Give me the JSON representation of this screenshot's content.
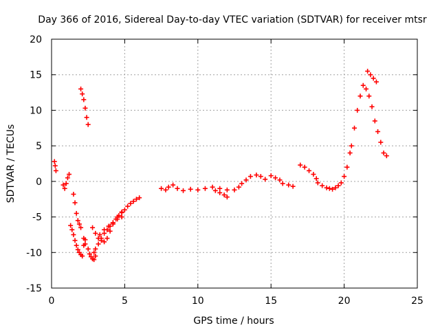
{
  "chart_data": {
    "type": "scatter",
    "title": "Day 366 of 2016, Sidereal Day-to-day VTEC variation (SDTVAR) for receiver mtsr",
    "xlabel": "GPS time / hours",
    "ylabel": "SDTVAR / TECUs",
    "xlim": [
      0,
      25
    ],
    "ylim": [
      -15,
      20
    ],
    "xticks": [
      "0",
      "5",
      "10",
      "15",
      "20",
      "25"
    ],
    "yticks": [
      "-15",
      "-10",
      "-5",
      "0",
      "5",
      "10",
      "15",
      "20"
    ],
    "grid": true,
    "marker": "plus",
    "series": [
      {
        "name": "SDTVAR",
        "color": "#ff0000",
        "x": [
          0.2,
          0.25,
          0.3,
          0.8,
          0.9,
          1.0,
          1.1,
          1.2,
          1.5,
          1.6,
          1.7,
          1.8,
          1.9,
          2.0,
          1.3,
          1.4,
          1.5,
          1.6,
          1.7,
          1.8,
          1.9,
          2.0,
          2.1,
          2.2,
          2.3,
          2.0,
          2.1,
          2.2,
          2.3,
          2.4,
          2.5,
          2.2,
          2.3,
          2.5,
          2.6,
          2.7,
          2.8,
          2.9,
          3.0,
          2.9,
          3.0,
          3.2,
          3.4,
          3.6,
          3.8,
          4.0,
          4.2,
          4.4,
          4.6,
          4.8,
          5.0,
          5.2,
          5.4,
          5.6,
          5.8,
          6.0,
          2.8,
          3.0,
          3.2,
          3.4,
          3.6,
          3.8,
          4.0,
          4.2,
          4.5,
          4.8,
          3.3,
          3.6,
          3.9,
          4.2,
          4.5,
          4.8,
          7.5,
          7.8,
          8.0,
          8.3,
          8.6,
          9.0,
          9.5,
          10.0,
          10.5,
          11.0,
          11.5,
          12.0,
          11.2,
          11.5,
          11.8,
          12.0,
          12.5,
          12.8,
          13.0,
          13.3,
          13.6,
          14.0,
          14.3,
          14.6,
          15.0,
          15.3,
          15.6,
          15.8,
          16.2,
          16.5,
          17.0,
          17.3,
          17.6,
          17.9,
          18.1,
          18.2,
          18.5,
          18.8,
          19.0,
          19.2,
          19.4,
          19.6,
          19.8,
          20.0,
          20.2,
          20.4,
          20.5,
          20.7,
          20.9,
          21.1,
          21.3,
          21.5,
          21.7,
          21.9,
          22.1,
          22.3,
          22.5,
          22.7,
          22.9,
          21.6,
          21.8,
          22.0,
          22.2
        ],
        "y": [
          2.8,
          2.2,
          1.5,
          -0.5,
          -1.0,
          -0.3,
          0.5,
          1.0,
          -1.8,
          -3.0,
          -4.5,
          -5.5,
          -6.0,
          -6.5,
          -6.2,
          -6.8,
          -7.5,
          -8.3,
          -9.0,
          -9.6,
          -10.0,
          -10.3,
          -10.5,
          -9.0,
          -8.2,
          13.0,
          12.3,
          11.5,
          10.3,
          9.0,
          8.0,
          -8.0,
          -8.8,
          -9.5,
          -10.2,
          -10.6,
          -10.9,
          -11.0,
          -10.5,
          -10.0,
          -9.5,
          -8.8,
          -8.0,
          -7.3,
          -6.8,
          -6.3,
          -5.8,
          -5.3,
          -4.8,
          -4.4,
          -4.0,
          -3.5,
          -3.1,
          -2.8,
          -2.5,
          -2.3,
          -6.5,
          -7.3,
          -8.0,
          -8.3,
          -8.5,
          -8.0,
          -7.0,
          -6.0,
          -5.0,
          -4.3,
          -7.5,
          -6.8,
          -6.3,
          -5.8,
          -5.3,
          -5.0,
          -1.0,
          -1.2,
          -0.8,
          -0.5,
          -1.0,
          -1.3,
          -1.1,
          -1.2,
          -1.0,
          -0.8,
          -1.0,
          -1.2,
          -1.3,
          -1.6,
          -1.9,
          -2.2,
          -1.2,
          -0.8,
          -0.3,
          0.2,
          0.7,
          0.9,
          0.7,
          0.3,
          0.8,
          0.5,
          0.2,
          -0.3,
          -0.5,
          -0.7,
          2.3,
          2.0,
          1.5,
          1.0,
          0.4,
          -0.2,
          -0.6,
          -0.9,
          -1.0,
          -1.1,
          -0.9,
          -0.6,
          -0.2,
          0.7,
          2.0,
          4.0,
          5.0,
          7.5,
          10.0,
          12.0,
          13.5,
          13.0,
          12.0,
          10.5,
          8.5,
          7.0,
          5.5,
          4.0,
          3.6,
          15.5,
          15.0,
          14.5,
          14.0
        ]
      }
    ]
  }
}
